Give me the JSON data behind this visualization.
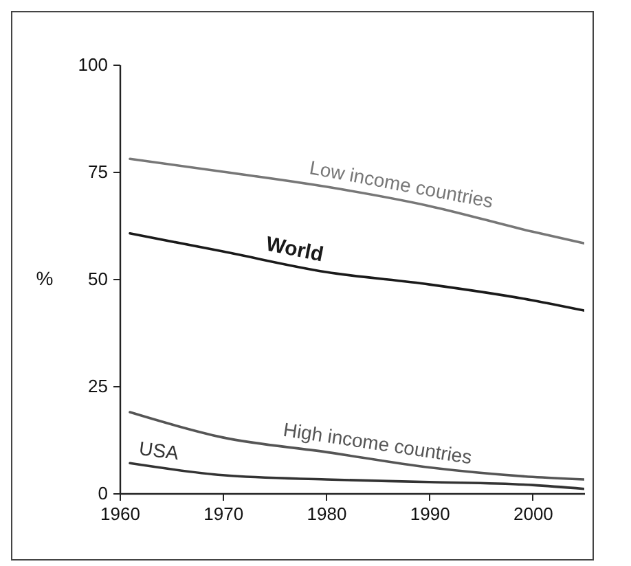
{
  "chart_data": {
    "type": "line",
    "ylabel": "%",
    "xlim": [
      1960,
      2005
    ],
    "xticks": [
      1960,
      1970,
      1980,
      1990,
      2000
    ],
    "ylim": [
      0,
      100
    ],
    "yticks": [
      0,
      25,
      50,
      75,
      100
    ],
    "grid": false,
    "x": [
      1961,
      1970,
      1980,
      1990,
      2000,
      2005
    ],
    "series": [
      {
        "name": "Low income countries",
        "color": "#777777",
        "values": [
          78,
          75,
          71.5,
          67,
          61,
          58.3
        ]
      },
      {
        "name": "World",
        "color": "#1a1a1a",
        "values": [
          60.6,
          56.4,
          51.6,
          48.7,
          45,
          42.6
        ]
      },
      {
        "name": "High income countries",
        "color": "#555555",
        "values": [
          18.9,
          13,
          9.6,
          6,
          3.8,
          3.2
        ]
      },
      {
        "name": "USA",
        "color": "#333333",
        "values": [
          7,
          4.2,
          3.2,
          2.6,
          1.9,
          1
        ]
      }
    ]
  }
}
